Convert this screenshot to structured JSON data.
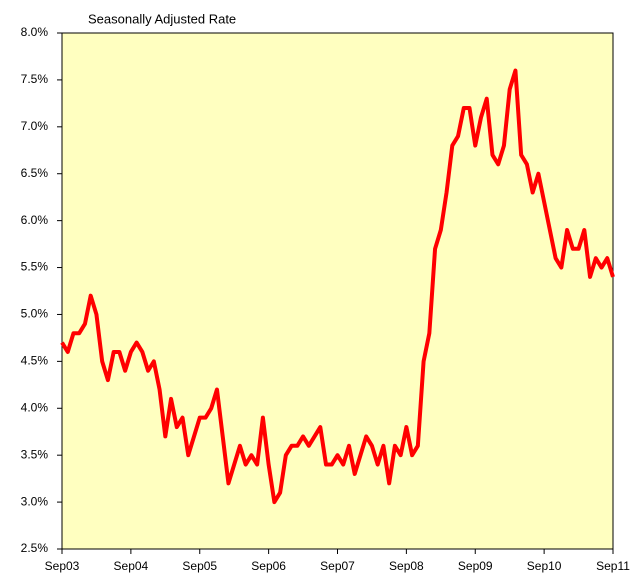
{
  "chart_data": {
    "type": "line",
    "title": "Seasonally Adjusted Rate",
    "categories": [
      "Sep03",
      null,
      null,
      null,
      null,
      null,
      null,
      null,
      null,
      null,
      null,
      null,
      "Sep04",
      null,
      null,
      null,
      null,
      null,
      null,
      null,
      null,
      null,
      null,
      null,
      "Sep05",
      null,
      null,
      null,
      null,
      null,
      null,
      null,
      null,
      null,
      null,
      null,
      "Sep06",
      null,
      null,
      null,
      null,
      null,
      null,
      null,
      null,
      null,
      null,
      null,
      "Sep07",
      null,
      null,
      null,
      null,
      null,
      null,
      null,
      null,
      null,
      null,
      null,
      "Sep08",
      null,
      null,
      null,
      null,
      null,
      null,
      null,
      null,
      null,
      null,
      null,
      "Sep09",
      null,
      null,
      null,
      null,
      null,
      null,
      null,
      null,
      null,
      null,
      null,
      "Sep10",
      null,
      null,
      null,
      null,
      null,
      null,
      null,
      null,
      null,
      null,
      null,
      "Sep11"
    ],
    "values": [
      4.7,
      4.6,
      4.8,
      4.8,
      4.9,
      5.2,
      5.0,
      4.5,
      4.3,
      4.6,
      4.6,
      4.4,
      4.6,
      4.7,
      4.6,
      4.4,
      4.5,
      4.2,
      3.7,
      4.1,
      3.8,
      3.9,
      3.5,
      3.7,
      3.9,
      3.9,
      4.0,
      4.2,
      3.7,
      3.2,
      3.4,
      3.6,
      3.4,
      3.5,
      3.4,
      3.9,
      3.4,
      3.0,
      3.1,
      3.5,
      3.6,
      3.6,
      3.7,
      3.6,
      3.7,
      3.8,
      3.4,
      3.4,
      3.5,
      3.4,
      3.6,
      3.3,
      3.5,
      3.7,
      3.6,
      3.4,
      3.6,
      3.2,
      3.6,
      3.5,
      3.8,
      3.5,
      3.6,
      4.5,
      4.8,
      5.7,
      5.9,
      6.3,
      6.8,
      6.9,
      7.2,
      7.2,
      6.8,
      7.1,
      7.3,
      6.7,
      6.6,
      6.8,
      7.4,
      7.6,
      6.7,
      6.6,
      6.3,
      6.5,
      6.2,
      5.9,
      5.6,
      5.5,
      5.9,
      5.7,
      5.7,
      5.9,
      5.4,
      5.6,
      5.5,
      5.6,
      5.4
    ],
    "color": "#ff0000",
    "background": "#ffffc0",
    "ylim": [
      2.5,
      8.0
    ],
    "yticks": [
      {
        "value": 2.5,
        "label": "2.5%"
      },
      {
        "value": 3.0,
        "label": "3.0%"
      },
      {
        "value": 3.5,
        "label": "3.5%"
      },
      {
        "value": 4.0,
        "label": "4.0%"
      },
      {
        "value": 4.5,
        "label": "4.5%"
      },
      {
        "value": 5.0,
        "label": "5.0%"
      },
      {
        "value": 5.5,
        "label": "5.5%"
      },
      {
        "value": 6.0,
        "label": "6.0%"
      },
      {
        "value": 6.5,
        "label": "6.5%"
      },
      {
        "value": 7.0,
        "label": "7.0%"
      },
      {
        "value": 7.5,
        "label": "7.5%"
      },
      {
        "value": 8.0,
        "label": "8.0%"
      }
    ],
    "grid": false
  }
}
